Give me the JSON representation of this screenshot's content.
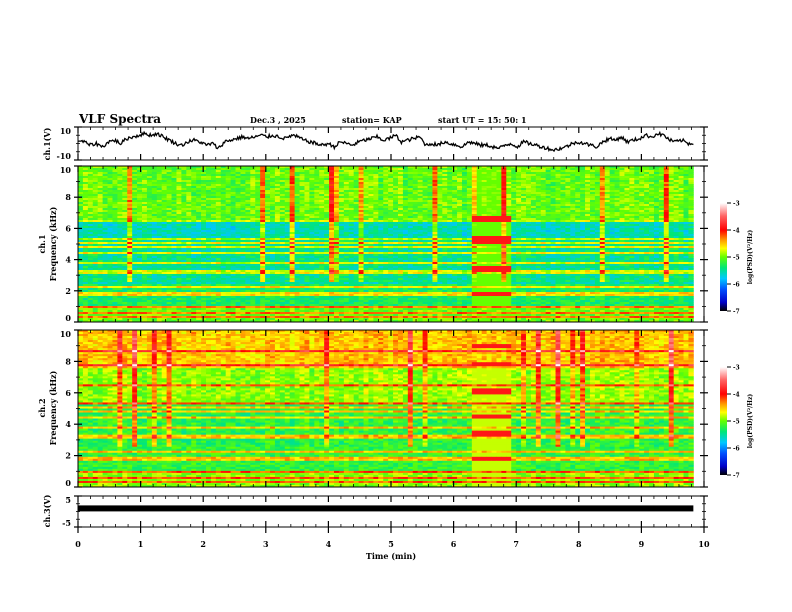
{
  "header": {
    "title": "VLF Spectra",
    "date": "Dec.3  , 2025",
    "station": "station= KAP",
    "start_ut": "start  UT =   15: 50: 1"
  },
  "chart_data": [
    {
      "id": "ch1_waveform",
      "type": "line",
      "ylabel": "ch.1(V)",
      "ylim": [
        -10,
        10
      ],
      "yticks": [
        "10",
        "-10"
      ],
      "xlim": [
        0,
        10
      ],
      "data_end_min": 9.83,
      "series": [
        {
          "name": "ch.1",
          "description": "noisy waveform envelope varying roughly between -5 and 5 V"
        }
      ],
      "approx_y": [
        2,
        1,
        -1,
        0,
        -2,
        1,
        2,
        0,
        3,
        4,
        5,
        6,
        5,
        6,
        4,
        2,
        0,
        -1,
        1,
        2,
        1,
        -1,
        0,
        -3,
        1,
        2,
        3,
        4,
        3,
        4,
        5,
        4,
        5,
        4,
        3,
        5,
        4,
        2,
        1,
        0,
        -1,
        0,
        -2,
        1,
        0,
        -1,
        1,
        2,
        3,
        4,
        2,
        3,
        5,
        1,
        2,
        3,
        4,
        -1,
        0,
        -1,
        1,
        0,
        -1,
        -2,
        1,
        0,
        -1,
        -1,
        -2,
        -3,
        -1,
        0,
        -2,
        1,
        0,
        -1,
        -2,
        -3,
        -4,
        -3,
        -2,
        0,
        1,
        0,
        -1,
        -2,
        1,
        3,
        2,
        4,
        1,
        2,
        3,
        5,
        4,
        6,
        5,
        2,
        1,
        2,
        0
      ]
    },
    {
      "id": "ch1_spectrogram",
      "type": "heatmap",
      "ylabel": "ch.1\nFrequency  (kHz)",
      "ylabel_line1": "ch.1",
      "ylabel_line2": "Frequency  (kHz)",
      "ylim": [
        0,
        10
      ],
      "yticks": [
        "0",
        "2",
        "4",
        "6",
        "8",
        "10"
      ],
      "xlim": [
        0,
        10
      ],
      "colorbar": {
        "label": "log(PSD)(V²/Hz)",
        "range": [
          -7,
          -3
        ],
        "ticks": [
          "-3",
          "-4",
          "-5",
          "-6",
          "-7"
        ]
      },
      "lines_khz": [
        0.3,
        0.6,
        1.0,
        1.8,
        2.3,
        3.2,
        3.8,
        4.4,
        4.8,
        5.1,
        5.3,
        6.5
      ],
      "burst": {
        "t_start": 6.3,
        "t_end": 6.9,
        "strong_khz": [
          1.8,
          3.4,
          5.1,
          5.3,
          6.6
        ]
      }
    },
    {
      "id": "ch2_spectrogram",
      "type": "heatmap",
      "ylabel_line1": "ch.2",
      "ylabel_line2": "Frequency  (kHz)",
      "ylim": [
        0,
        10
      ],
      "yticks": [
        "0",
        "2",
        "4",
        "6",
        "8",
        "10"
      ],
      "xlim": [
        0,
        10
      ],
      "colorbar": {
        "label": "log(PSD)(V²/Hz)",
        "range": [
          -7,
          -3
        ],
        "ticks": [
          "-3",
          "-4",
          "-5",
          "-6",
          "-7"
        ]
      },
      "lines_khz": [
        0.3,
        0.6,
        1.0,
        1.8,
        2.3,
        3.2,
        3.8,
        4.4,
        4.8,
        5.1,
        5.3,
        6.5,
        7.7,
        8.6
      ],
      "burst": {
        "t_start": 6.3,
        "t_end": 6.9,
        "strong_khz": [
          1.8,
          3.4,
          4.5,
          6.1,
          7.8,
          9.0
        ]
      }
    },
    {
      "id": "ch3_waveform",
      "type": "line",
      "ylabel": "ch.3(V)",
      "ylim": [
        -5,
        5
      ],
      "yticks": [
        "5",
        "-5"
      ],
      "xlim": [
        0,
        10
      ],
      "data_end_min": 9.83,
      "series": [
        {
          "name": "ch.3",
          "description": "thick flat band near 1 V",
          "y": 1.0
        }
      ]
    }
  ],
  "xaxis": {
    "label": "Time  (min)",
    "ticks": [
      "0",
      "1",
      "2",
      "3",
      "4",
      "5",
      "6",
      "7",
      "8",
      "9",
      "10"
    ]
  },
  "colors": {
    "axis": "#000000",
    "colormap": [
      "#000000",
      "#0000c8",
      "#0050ff",
      "#00c8ff",
      "#00e678",
      "#64ff00",
      "#ffff00",
      "#ff9600",
      "#ff0000",
      "#ff6464",
      "#ffffff"
    ]
  }
}
